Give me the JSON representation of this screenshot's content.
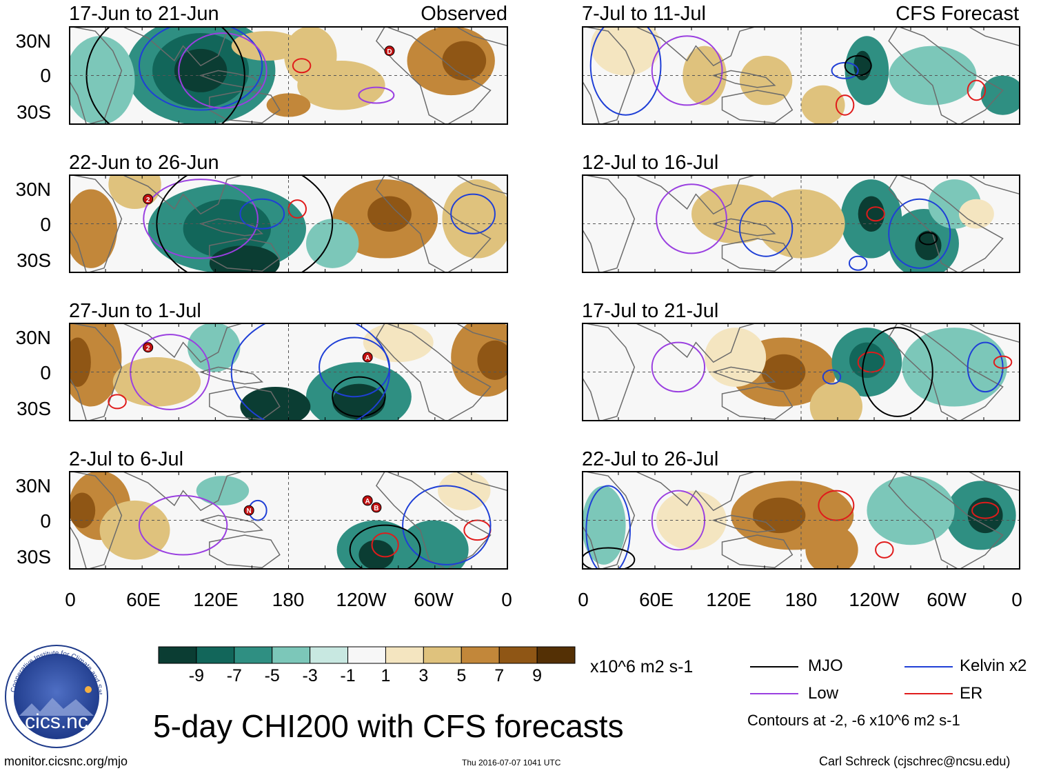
{
  "header": {
    "left_label": "Observed",
    "right_label": "CFS Forecast"
  },
  "panels": {
    "observed": [
      {
        "title": "17-Jun to 21-Jun"
      },
      {
        "title": "22-Jun to 26-Jun"
      },
      {
        "title": "27-Jun to 1-Jul"
      },
      {
        "title": "2-Jul to 6-Jul"
      }
    ],
    "forecast": [
      {
        "title": "7-Jul to 11-Jul"
      },
      {
        "title": "12-Jul to 16-Jul"
      },
      {
        "title": "17-Jul to 21-Jul"
      },
      {
        "title": "22-Jul to 26-Jul"
      }
    ]
  },
  "axes": {
    "y_labels": [
      "30N",
      "0",
      "30S"
    ],
    "x_labels": [
      "0",
      "60E",
      "120E",
      "180",
      "120W",
      "60W",
      "0"
    ]
  },
  "colorbar": {
    "colors": [
      "#0b3d33",
      "#12665a",
      "#2f8f82",
      "#7cc7b9",
      "#c8e8e1",
      "#f7f7f7",
      "#f4e5c0",
      "#dfc27d",
      "#c2873a",
      "#8f5615",
      "#543005"
    ],
    "ticks": [
      "-9",
      "-7",
      "-5",
      "-3",
      "-1",
      "1",
      "3",
      "5",
      "7",
      "9"
    ],
    "units": "x10^6 m2 s-1"
  },
  "legend": {
    "items": [
      {
        "label": "MJO",
        "color": "#000000"
      },
      {
        "label": "Kelvin x2",
        "color": "#1f3fd6"
      },
      {
        "label": "Low",
        "color": "#9a3fe0"
      },
      {
        "label": "ER",
        "color": "#e01b1b"
      }
    ],
    "note": "Contours at -2, -6 x10^6 m2 s-1"
  },
  "title": "5-day CHI200 with CFS forecasts",
  "logo_text": "cics.nc",
  "logo_ring_text": "Cooperative Institute for Climate and Satellites",
  "footer": {
    "url": "monitor.cicsnc.org/mjo",
    "timestamp": "Thu 2016-07-07 1041 UTC",
    "author": "Carl Schreck (cjschrec@ncsu.edu)"
  },
  "storm_markers": [
    "D",
    "2",
    "2",
    "A",
    "N",
    "A",
    "B"
  ]
}
